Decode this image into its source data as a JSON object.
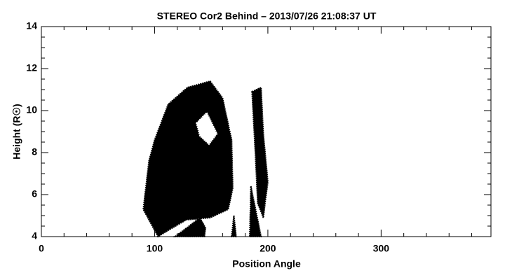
{
  "chart_data": {
    "type": "region",
    "title": "STEREO Cor2 Behind  – 2013/07/26  21:08:37 UT",
    "xlabel": "Position Angle",
    "ylabel": "Height (R☉)",
    "xlim": [
      0,
      397
    ],
    "ylim": [
      4,
      14
    ],
    "xticks": [
      0,
      100,
      200,
      300
    ],
    "yticks": [
      4,
      6,
      8,
      10,
      12,
      14
    ],
    "xminorticks": [
      20,
      40,
      60,
      80,
      120,
      140,
      160,
      180,
      220,
      240,
      260,
      280,
      320,
      340,
      360,
      380
    ],
    "yminorticks": [
      4.5,
      5,
      5.5,
      6.5,
      7,
      7.5,
      8.5,
      9,
      9.5,
      10.5,
      11,
      11.5,
      12.5,
      13,
      13.5
    ],
    "regions": [
      {
        "color": "#000000",
        "x": [
          90,
          95,
          100,
          112,
          129,
          149,
          160,
          168,
          169,
          165,
          149,
          128,
          112,
          103,
          97
        ],
        "y": [
          5.3,
          7.6,
          8.6,
          10.3,
          11.1,
          11.4,
          10.6,
          8.6,
          6.3,
          5.3,
          4.9,
          4.8,
          4.3,
          4,
          4.6
        ]
      },
      {
        "color": "#ffffff",
        "x": [
          137,
          146,
          155,
          148,
          140
        ],
        "y": [
          9.4,
          9.9,
          8.9,
          8.4,
          8.8
        ]
      },
      {
        "color": "#000000",
        "x": [
          118,
          128,
          140,
          145,
          144
        ],
        "y": [
          4,
          4.4,
          4.9,
          4.4,
          4
        ]
      },
      {
        "color": "#000000",
        "x": [
          168,
          170,
          172
        ],
        "y": [
          4,
          5,
          4
        ]
      },
      {
        "color": "#000000",
        "x": [
          186,
          194,
          196,
          200,
          198,
          196,
          191,
          189,
          187
        ],
        "y": [
          10.9,
          11.1,
          8.9,
          6.6,
          5.8,
          4.9,
          5.6,
          7.9,
          9.9
        ]
      },
      {
        "color": "#000000",
        "x": [
          184,
          185,
          188,
          194
        ],
        "y": [
          4,
          6.4,
          5.6,
          4
        ]
      }
    ]
  }
}
